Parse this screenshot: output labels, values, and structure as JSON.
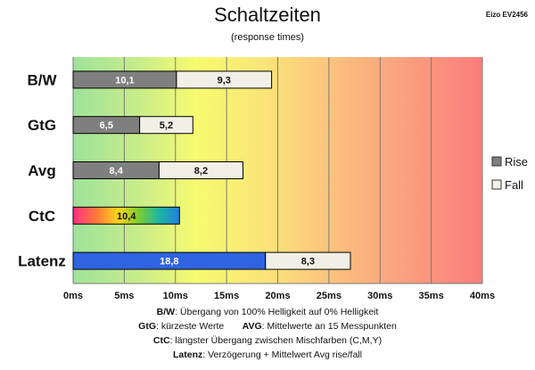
{
  "title": "Schaltzeiten",
  "subtitle": "(response times)",
  "model": "Eizo EV2456",
  "notes": [
    {
      "term": "B/W",
      "text": ":  Übergang von 100% Helligkeit auf 0% Helligkeit"
    },
    {
      "term": "GtG",
      "text": ": kürzeste  Werte",
      "term2": "AVG",
      "text2": ": Mittelwerte  an 15 Messpunkten"
    },
    {
      "term": "CtC",
      "text": ": längster Übergang  zwischen Mischfarben (C,M,Y)"
    },
    {
      "term": "Latenz",
      "text": ": Verzögerung  + Mittelwert Avg rise/fall"
    }
  ],
  "colors": {
    "rise": "#7f7f7f",
    "fall": "#f2f0e6",
    "latency": "#2f63e0",
    "border": "#000000"
  },
  "chart_data": {
    "type": "bar",
    "orientation": "horizontal",
    "stacked": true,
    "categories": [
      "B/W",
      "GtG",
      "Avg",
      "CtC",
      "Latenz"
    ],
    "series": [
      {
        "name": "Rise",
        "values": [
          10.1,
          6.5,
          8.4,
          10.4,
          18.8
        ]
      },
      {
        "name": "Fall",
        "values": [
          9.3,
          5.2,
          8.2,
          null,
          8.3
        ]
      }
    ],
    "labels": {
      "Rise": [
        "10,1",
        "6,5",
        "8,4",
        "10,4",
        "18,8"
      ],
      "Fall": [
        "9,3",
        "5,2",
        "8,2",
        "",
        "8,3"
      ]
    },
    "xticks": [
      "0ms",
      "5ms",
      "10ms",
      "15ms",
      "20ms",
      "25ms",
      "30ms",
      "35ms",
      "40ms"
    ],
    "xlim": [
      0,
      40
    ],
    "grid": true,
    "legend": [
      "Rise",
      "Fall"
    ],
    "legend_position": "right"
  }
}
